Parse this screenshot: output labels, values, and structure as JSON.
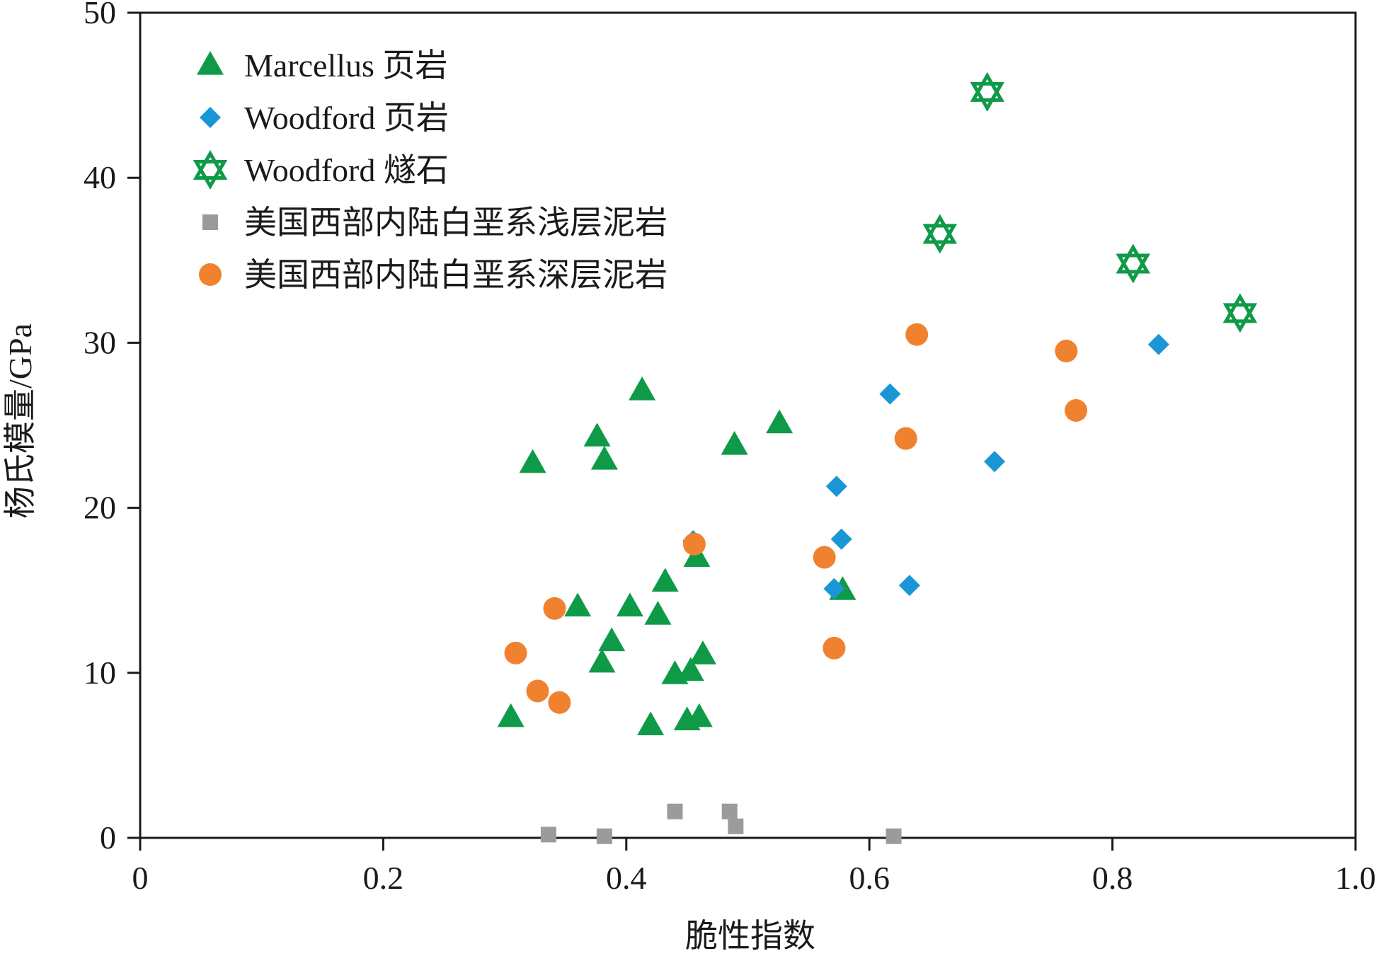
{
  "chart_data": {
    "type": "scatter",
    "xlabel": "脆性指数",
    "ylabel": "杨氏模量/GPa",
    "xlim": [
      0,
      1.0
    ],
    "ylim": [
      0,
      50
    ],
    "x_ticks": [
      0,
      0.2,
      0.4,
      0.6,
      0.8,
      1.0
    ],
    "x_tick_labels": [
      "0",
      "0.2",
      "0.4",
      "0.6",
      "0.8",
      "1.0"
    ],
    "y_ticks": [
      0,
      10,
      20,
      30,
      40,
      50
    ],
    "y_tick_labels": [
      "0",
      "10",
      "20",
      "30",
      "40",
      "50"
    ],
    "grid": false,
    "legend_position": "top-left",
    "series": [
      {
        "name": "Marcellus 页岩",
        "marker": "triangle",
        "color": "#0f9a48",
        "points": [
          [
            0.305,
            7.3
          ],
          [
            0.323,
            22.7
          ],
          [
            0.36,
            14.0
          ],
          [
            0.376,
            24.3
          ],
          [
            0.38,
            10.6
          ],
          [
            0.382,
            22.9
          ],
          [
            0.388,
            11.9
          ],
          [
            0.403,
            14.0
          ],
          [
            0.413,
            27.1
          ],
          [
            0.42,
            6.8
          ],
          [
            0.426,
            13.5
          ],
          [
            0.432,
            15.5
          ],
          [
            0.44,
            9.9
          ],
          [
            0.45,
            7.1
          ],
          [
            0.453,
            10.1
          ],
          [
            0.458,
            17.0
          ],
          [
            0.46,
            7.3
          ],
          [
            0.463,
            11.1
          ],
          [
            0.489,
            23.8
          ],
          [
            0.526,
            25.1
          ],
          [
            0.578,
            15.0
          ]
        ]
      },
      {
        "name": "Woodford 页岩",
        "marker": "diamond",
        "color": "#1a96d6",
        "points": [
          [
            0.455,
            18.0
          ],
          [
            0.571,
            15.1
          ],
          [
            0.573,
            21.3
          ],
          [
            0.577,
            18.1
          ],
          [
            0.617,
            26.9
          ],
          [
            0.633,
            15.3
          ],
          [
            0.703,
            22.8
          ],
          [
            0.838,
            29.9
          ]
        ]
      },
      {
        "name": "Woodford 燧石",
        "marker": "hexagram",
        "color": "#0f9a48",
        "points": [
          [
            0.658,
            36.6
          ],
          [
            0.697,
            45.2
          ],
          [
            0.817,
            34.8
          ],
          [
            0.905,
            31.8
          ]
        ]
      },
      {
        "name": "美国西部内陆白垩系浅层泥岩",
        "marker": "square",
        "color": "#9b9b9b",
        "points": [
          [
            0.336,
            0.2
          ],
          [
            0.382,
            0.1
          ],
          [
            0.44,
            1.6
          ],
          [
            0.485,
            1.6
          ],
          [
            0.49,
            0.7
          ],
          [
            0.62,
            0.1
          ]
        ]
      },
      {
        "name": "美国西部内陆白垩系深层泥岩",
        "marker": "circle",
        "color": "#f0822f",
        "points": [
          [
            0.309,
            11.2
          ],
          [
            0.327,
            8.9
          ],
          [
            0.341,
            13.9
          ],
          [
            0.345,
            8.2
          ],
          [
            0.456,
            17.8
          ],
          [
            0.563,
            17.0
          ],
          [
            0.571,
            11.5
          ],
          [
            0.63,
            24.2
          ],
          [
            0.639,
            30.5
          ],
          [
            0.762,
            29.5
          ],
          [
            0.77,
            25.9
          ]
        ]
      }
    ]
  }
}
